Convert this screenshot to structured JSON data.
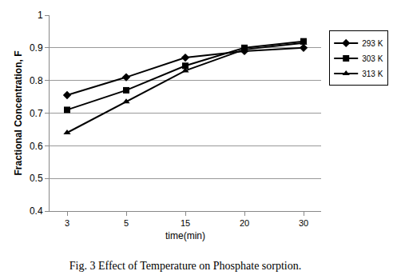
{
  "chart_data": {
    "type": "line",
    "title": "Fig. 3 Effect of Temperature on Phosphate sorption.",
    "x_label": "time(min)",
    "y_label": "Fractional Concentration, F",
    "categories": [
      "3",
      "5",
      "15",
      "20",
      "30"
    ],
    "series": [
      {
        "name": "293 K",
        "color": "#000000",
        "marker": "diamond",
        "values": [
          0.755,
          0.81,
          0.87,
          0.89,
          0.9
        ]
      },
      {
        "name": "303 K",
        "color": "#000000",
        "marker": "square",
        "values": [
          0.71,
          0.77,
          0.845,
          0.9,
          0.92
        ]
      },
      {
        "name": "313 K",
        "color": "#000000",
        "marker": "triangle",
        "values": [
          0.64,
          0.735,
          0.83,
          0.895,
          0.915
        ]
      }
    ],
    "ylim": [
      0.4,
      1
    ],
    "yticks": [
      0.4,
      0.5,
      0.6,
      0.7,
      0.8,
      0.9,
      1
    ],
    "grid": true,
    "legend": "right"
  }
}
